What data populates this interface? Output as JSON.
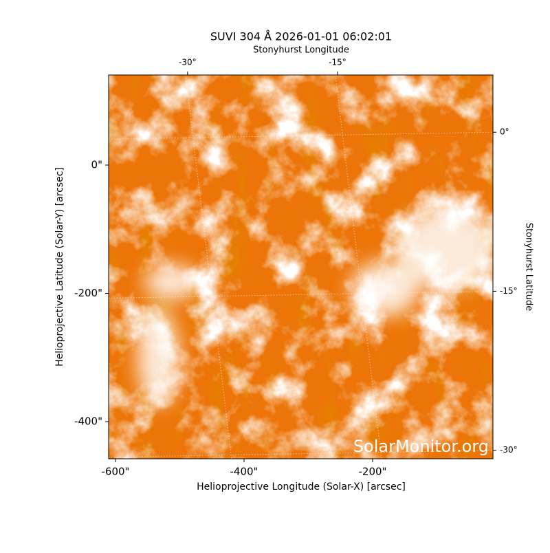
{
  "chart_data": {
    "type": "image",
    "title": "SUVI 304 Å 2026-01-01 06:02:01",
    "xlabel": "Helioprojective Longitude (Solar-X) [arcsec]",
    "ylabel": "Helioprojective Latitude (Solar-Y) [arcsec]",
    "x2label": "Stonyhurst Longitude",
    "y2label": "Stonyhurst Latitude",
    "watermark": "SolarMonitor.org",
    "xlim": [
      -610.7,
      -12.8
    ],
    "ylim": [
      -457.9,
      140.5
    ],
    "xticks": [
      {
        "value": -600,
        "label": "-600\""
      },
      {
        "value": -400,
        "label": "-400\""
      },
      {
        "value": -200,
        "label": "-200\""
      }
    ],
    "yticks": [
      {
        "value": -400,
        "label": "-400\""
      },
      {
        "value": -200,
        "label": "-200\""
      },
      {
        "value": 0,
        "label": "0\""
      }
    ],
    "x2lim": [
      -37.9,
      0.55
    ],
    "x2ticks": [
      {
        "value": -30,
        "label": "-30°"
      },
      {
        "value": -15,
        "label": "-15°"
      }
    ],
    "y2lim": [
      -30.8,
      5.4
    ],
    "y2ticks": [
      {
        "value": 0,
        "label": "0°"
      },
      {
        "value": -15,
        "label": "-15°"
      },
      {
        "value": -30,
        "label": "-30°"
      }
    ],
    "grid": true
  }
}
